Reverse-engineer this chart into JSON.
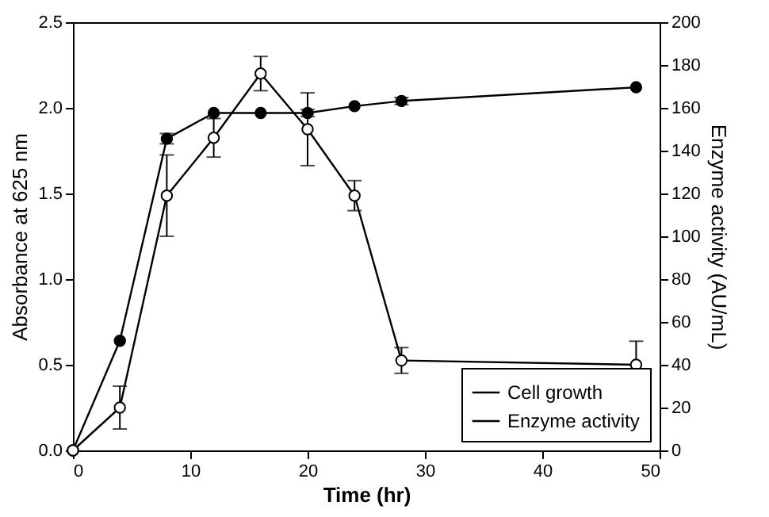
{
  "chart_data": {
    "type": "line",
    "xlabel": "Time (hr)",
    "ylabel": "Absorbance at 625 nm",
    "y2label": "Enzyme activity (AU/mL)",
    "x": [
      0,
      4,
      8,
      12,
      16,
      20,
      24,
      28,
      48
    ],
    "series": [
      {
        "name": "Cell growth",
        "color": "#000000",
        "marker": "circle",
        "values": [
          0,
          0.64,
          1.82,
          1.97,
          1.97,
          1.97,
          2.01,
          2.04,
          2.12
        ],
        "errors": [
          null,
          null,
          0.03,
          null,
          null,
          0.02,
          null,
          0.02,
          null
        ]
      },
      {
        "name": "Enzyme activity",
        "color": "#000000",
        "marker": "circle",
        "axis": "y2",
        "values": [
          0,
          20,
          119,
          146,
          176,
          150,
          119,
          42,
          40
        ],
        "errors": [
          null,
          10,
          19,
          9,
          8,
          17,
          7,
          6,
          11
        ]
      }
    ],
    "xlim": [
      0,
      50
    ],
    "xticks": [
      0,
      10,
      20,
      30,
      40,
      50
    ],
    "ylim": [
      0,
      2.5
    ],
    "yticks": [
      {
        "value": 0,
        "label": "0.0"
      },
      0.5,
      {
        "value": 1,
        "label": "1.0"
      },
      1.5,
      {
        "value": 2,
        "label": "2.0"
      },
      2.5
    ],
    "y2lim": [
      0,
      200
    ],
    "y2ticks": [
      0,
      20,
      40,
      60,
      80,
      100,
      120,
      140,
      160,
      180,
      200
    ],
    "legend": "bottom right",
    "grid": false
  }
}
